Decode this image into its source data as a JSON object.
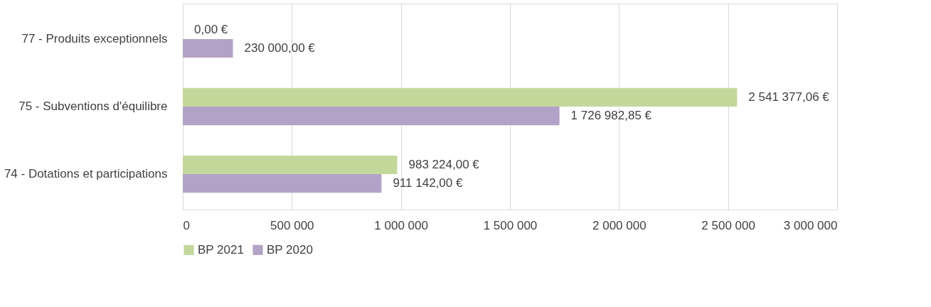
{
  "chart_data": {
    "type": "bar",
    "orientation": "horizontal",
    "categories": [
      "77 - Produits exceptionnels",
      "75 - Subventions d'équilibre",
      "74 - Dotations et participations"
    ],
    "series": [
      {
        "name": "BP 2021",
        "color": "#c4d79b",
        "values": [
          0,
          2541377.06,
          983224
        ],
        "value_labels": [
          "0,00 €",
          "2 541 377,06 €",
          "983 224,00 €"
        ]
      },
      {
        "name": "BP 2020",
        "color": "#b3a2c7",
        "values": [
          230000,
          1726982.85,
          911142
        ],
        "value_labels": [
          "230 000,00 €",
          "1 726 982,85 €",
          "911 142,00 €"
        ]
      }
    ],
    "xlim": [
      0,
      3000000
    ],
    "xticks": [
      0,
      {
        "value": 500000,
        "label": "500 000"
      },
      {
        "value": 1000000,
        "label": "1 000 000"
      },
      {
        "value": 1500000,
        "label": "1 500 000"
      },
      {
        "value": 2000000,
        "label": "2 000 000"
      },
      {
        "value": 2500000,
        "label": "2 500 000"
      },
      {
        "value": 3000000,
        "label": "3 000 000"
      }
    ],
    "grid": "x",
    "legend": "bottom"
  }
}
